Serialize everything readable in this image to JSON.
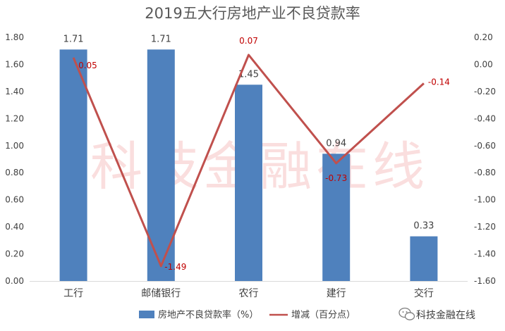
{
  "chart_data": {
    "type": "bar",
    "title": "2019五大行房地产业不良贷款率",
    "categories": [
      "工行",
      "邮储银行",
      "农行",
      "建行",
      "交行"
    ],
    "series": [
      {
        "name": "房地产不良贷款率（%）",
        "type": "bar",
        "axis": "left",
        "values": [
          1.71,
          1.71,
          1.45,
          0.94,
          0.33
        ],
        "labels": [
          "1.71",
          "1.71",
          "1.45",
          "0.94",
          "0.33"
        ],
        "color": "#4f81bd"
      },
      {
        "name": "增减（百分点）",
        "type": "line",
        "axis": "right",
        "values": [
          0.05,
          -1.49,
          0.07,
          -0.73,
          -0.14
        ],
        "labels": [
          "0.05",
          "-1.49",
          "0.07",
          "-0.73",
          "-0.14"
        ],
        "color": "#c0504d"
      }
    ],
    "yleft": {
      "min": 0,
      "max": 1.8,
      "ticks": [
        "0.00",
        "0.20",
        "0.40",
        "0.60",
        "0.80",
        "1.00",
        "1.20",
        "1.40",
        "1.60",
        "1.80"
      ]
    },
    "yright": {
      "min": -1.6,
      "max": 0.2,
      "ticks": [
        "-1.60",
        "-1.40",
        "-1.20",
        "-1.00",
        "-0.80",
        "-0.60",
        "-0.40",
        "-0.20",
        "0.00",
        "0.20"
      ]
    },
    "grid": false,
    "legend": "bottom"
  },
  "watermark": {
    "text": "科技金融在线"
  },
  "brand": {
    "text": "科技金融在线",
    "icon": "wechat-icon"
  },
  "colors": {
    "label_red": "#c00000",
    "axis": "#d9d9d9"
  }
}
